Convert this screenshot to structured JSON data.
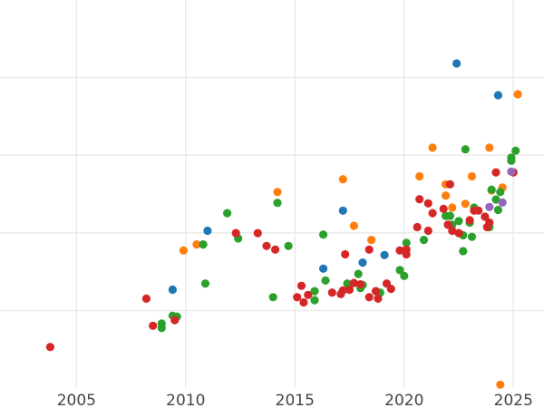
{
  "chart_data": {
    "type": "scatter",
    "title": "",
    "xlabel": "",
    "ylabel": "",
    "xlim": [
      2001.5,
      2026.4
    ],
    "ylim": [
      0,
      1
    ],
    "x_ticks": [
      2005,
      2010,
      2015,
      2020,
      2025
    ],
    "x_tick_labels": [
      "2005",
      "2010",
      "2015",
      "2020",
      "2025"
    ],
    "y_gridlines": [
      0.2,
      0.4,
      0.6,
      0.8
    ],
    "grid": true,
    "legend": "none",
    "series": [
      {
        "color": "#1f77b4",
        "points": [
          [
            2009.4,
            0.2536
          ],
          [
            2011.0,
            0.4053
          ],
          [
            2016.3,
            0.3078
          ],
          [
            2017.2,
            0.4573
          ],
          [
            2018.1,
            0.3233
          ],
          [
            2019.1,
            0.3427
          ],
          [
            2022.4,
            0.8364
          ],
          [
            2024.3,
            0.7547
          ]
        ]
      },
      {
        "color": "#ff7f0e",
        "points": [
          [
            2009.9,
            0.3547
          ],
          [
            2010.5,
            0.3702
          ],
          [
            2014.2,
            0.5053
          ],
          [
            2017.2,
            0.538
          ],
          [
            2017.7,
            0.4182
          ],
          [
            2018.5,
            0.3818
          ],
          [
            2020.7,
            0.5456
          ],
          [
            2021.3,
            0.6193
          ],
          [
            2021.9,
            0.5251
          ],
          [
            2021.9,
            0.496
          ],
          [
            2022.2,
            0.4649
          ],
          [
            2022.8,
            0.4747
          ],
          [
            2023.1,
            0.5456
          ],
          [
            2023.9,
            0.6193
          ],
          [
            2024.0,
            0.5093
          ],
          [
            2024.5,
            0.5167
          ],
          [
            2025.2,
            0.7569
          ],
          [
            2024.4,
            0.0087
          ]
        ]
      },
      {
        "color": "#2ca02c",
        "points": [
          [
            2008.9,
            0.1662
          ],
          [
            2008.9,
            0.1547
          ],
          [
            2009.4,
            0.1864
          ],
          [
            2009.6,
            0.1842
          ],
          [
            2010.8,
            0.3702
          ],
          [
            2010.9,
            0.2693
          ],
          [
            2011.9,
            0.4507
          ],
          [
            2012.4,
            0.3856
          ],
          [
            2014.0,
            0.2342
          ],
          [
            2014.2,
            0.4773
          ],
          [
            2014.7,
            0.3662
          ],
          [
            2015.9,
            0.2498
          ],
          [
            2015.9,
            0.2264
          ],
          [
            2016.3,
            0.3956
          ],
          [
            2016.4,
            0.2771
          ],
          [
            2017.4,
            0.2693
          ],
          [
            2017.9,
            0.2942
          ],
          [
            2018.0,
            0.2576
          ],
          [
            2018.1,
            0.2656
          ],
          [
            2018.9,
            0.246
          ],
          [
            2019.8,
            0.304
          ],
          [
            2020.0,
            0.2887
          ],
          [
            2020.1,
            0.374
          ],
          [
            2020.9,
            0.3818
          ],
          [
            2021.9,
            0.4438
          ],
          [
            2022.1,
            0.4438
          ],
          [
            2022.2,
            0.4207
          ],
          [
            2022.5,
            0.4304
          ],
          [
            2022.7,
            0.3936
          ],
          [
            2022.8,
            0.6153
          ],
          [
            2022.7,
            0.3527
          ],
          [
            2023.0,
            0.4264
          ],
          [
            2023.1,
            0.3898
          ],
          [
            2023.2,
            0.4649
          ],
          [
            2023.9,
            0.4147
          ],
          [
            2024.0,
            0.5111
          ],
          [
            2024.2,
            0.486
          ],
          [
            2024.3,
            0.459
          ],
          [
            2024.4,
            0.5053
          ],
          [
            2024.9,
            0.5936
          ],
          [
            2024.9,
            0.5858
          ],
          [
            2025.1,
            0.6116
          ]
        ]
      },
      {
        "color": "#d62728",
        "points": [
          [
            2003.8,
            0.1058
          ],
          [
            2008.2,
            0.2304
          ],
          [
            2008.5,
            0.1604
          ],
          [
            2009.5,
            0.1749
          ],
          [
            2012.3,
            0.3993
          ],
          [
            2013.3,
            0.3993
          ],
          [
            2013.7,
            0.3662
          ],
          [
            2014.1,
            0.3567
          ],
          [
            2015.1,
            0.2342
          ],
          [
            2015.3,
            0.2635
          ],
          [
            2015.4,
            0.2207
          ],
          [
            2015.6,
            0.24
          ],
          [
            2016.7,
            0.246
          ],
          [
            2017.1,
            0.242
          ],
          [
            2017.2,
            0.2516
          ],
          [
            2017.3,
            0.3447
          ],
          [
            2017.5,
            0.2536
          ],
          [
            2017.7,
            0.2709
          ],
          [
            2018.0,
            0.2673
          ],
          [
            2018.4,
            0.2342
          ],
          [
            2018.4,
            0.3567
          ],
          [
            2018.7,
            0.2498
          ],
          [
            2018.8,
            0.2304
          ],
          [
            2019.2,
            0.2693
          ],
          [
            2019.4,
            0.2556
          ],
          [
            2019.8,
            0.3547
          ],
          [
            2020.1,
            0.3567
          ],
          [
            2020.1,
            0.3447
          ],
          [
            2020.6,
            0.4147
          ],
          [
            2020.7,
            0.4867
          ],
          [
            2021.1,
            0.476
          ],
          [
            2021.1,
            0.4053
          ],
          [
            2021.3,
            0.4507
          ],
          [
            2021.8,
            0.4616
          ],
          [
            2022.0,
            0.4207
          ],
          [
            2022.1,
            0.5251
          ],
          [
            2022.2,
            0.4053
          ],
          [
            2022.5,
            0.3993
          ],
          [
            2023.0,
            0.4324
          ],
          [
            2023.2,
            0.4573
          ],
          [
            2023.4,
            0.4573
          ],
          [
            2023.7,
            0.4416
          ],
          [
            2023.8,
            0.4147
          ],
          [
            2023.9,
            0.4264
          ],
          [
            2024.2,
            0.5558
          ],
          [
            2025.0,
            0.5558
          ]
        ]
      },
      {
        "color": "#9467bd",
        "points": [
          [
            2023.9,
            0.4667
          ],
          [
            2024.5,
            0.4781
          ],
          [
            2024.9,
            0.5578
          ]
        ]
      }
    ]
  }
}
